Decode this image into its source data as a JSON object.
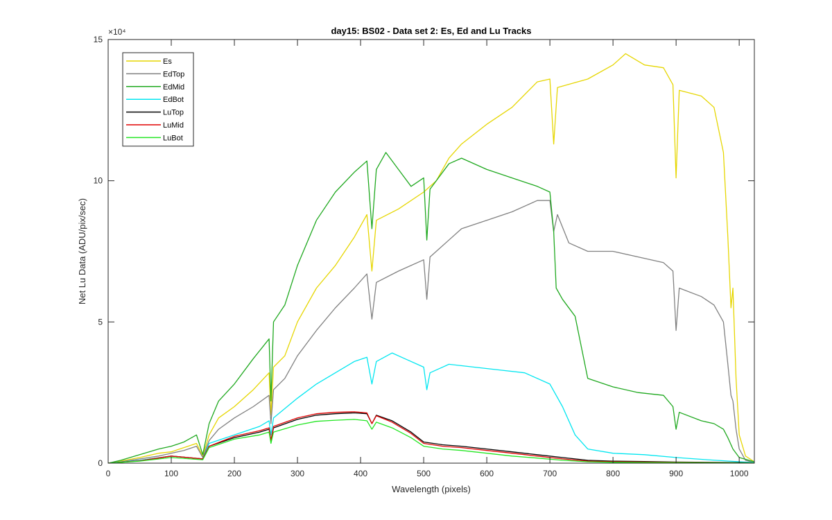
{
  "chart_data": {
    "type": "line",
    "title": "day15: BS02 - Data set 2: Es, Ed and Lu Tracks",
    "xlabel": "Wavelength (pixels)",
    "ylabel": "Net Lu Data (ADU/pix/sec)",
    "xlim": [
      0,
      1024
    ],
    "ylim": [
      0,
      150000
    ],
    "exponent_label": "×10⁴",
    "xticks": [
      0,
      100,
      200,
      300,
      400,
      500,
      600,
      700,
      800,
      900,
      1000
    ],
    "yticks": [
      0,
      50000,
      100000,
      150000
    ],
    "ytick_labels": [
      "0",
      "5",
      "10",
      "15"
    ],
    "legend_position": "top-left",
    "grid": false,
    "series": [
      {
        "name": "Es",
        "color": "#e6d600",
        "points": [
          [
            0,
            0
          ],
          [
            20,
            700
          ],
          [
            50,
            2000
          ],
          [
            80,
            3500
          ],
          [
            100,
            4000
          ],
          [
            120,
            5500
          ],
          [
            140,
            7000
          ],
          [
            150,
            2500
          ],
          [
            160,
            10000
          ],
          [
            175,
            16000
          ],
          [
            200,
            20000
          ],
          [
            230,
            26000
          ],
          [
            255,
            32000
          ],
          [
            258,
            17000
          ],
          [
            262,
            34000
          ],
          [
            280,
            38000
          ],
          [
            300,
            50000
          ],
          [
            330,
            62000
          ],
          [
            360,
            70000
          ],
          [
            390,
            80000
          ],
          [
            410,
            88000
          ],
          [
            418,
            68000
          ],
          [
            425,
            86000
          ],
          [
            460,
            90000
          ],
          [
            500,
            96000
          ],
          [
            520,
            100000
          ],
          [
            540,
            108000
          ],
          [
            560,
            113000
          ],
          [
            600,
            120000
          ],
          [
            640,
            126000
          ],
          [
            680,
            135000
          ],
          [
            700,
            136000
          ],
          [
            706,
            113000
          ],
          [
            712,
            133000
          ],
          [
            760,
            136000
          ],
          [
            800,
            141000
          ],
          [
            820,
            145000
          ],
          [
            850,
            141000
          ],
          [
            880,
            140000
          ],
          [
            895,
            134000
          ],
          [
            900,
            101000
          ],
          [
            905,
            132000
          ],
          [
            940,
            130000
          ],
          [
            960,
            126000
          ],
          [
            975,
            110000
          ],
          [
            982,
            80000
          ],
          [
            987,
            55000
          ],
          [
            990,
            62000
          ],
          [
            995,
            30000
          ],
          [
            1000,
            10000
          ],
          [
            1010,
            2500
          ],
          [
            1024,
            500
          ]
        ]
      },
      {
        "name": "EdTop",
        "color": "#808080",
        "points": [
          [
            0,
            0
          ],
          [
            20,
            500
          ],
          [
            50,
            1500
          ],
          [
            80,
            2500
          ],
          [
            100,
            3500
          ],
          [
            120,
            4500
          ],
          [
            140,
            6000
          ],
          [
            150,
            2000
          ],
          [
            160,
            8000
          ],
          [
            175,
            12000
          ],
          [
            200,
            16000
          ],
          [
            230,
            20000
          ],
          [
            255,
            24000
          ],
          [
            258,
            14000
          ],
          [
            262,
            26000
          ],
          [
            280,
            30000
          ],
          [
            300,
            38000
          ],
          [
            330,
            47000
          ],
          [
            360,
            55000
          ],
          [
            390,
            62000
          ],
          [
            410,
            67000
          ],
          [
            418,
            51000
          ],
          [
            425,
            64000
          ],
          [
            460,
            68000
          ],
          [
            500,
            72000
          ],
          [
            505,
            58000
          ],
          [
            510,
            73000
          ],
          [
            540,
            79000
          ],
          [
            560,
            83000
          ],
          [
            600,
            86000
          ],
          [
            640,
            89000
          ],
          [
            680,
            93000
          ],
          [
            700,
            93000
          ],
          [
            706,
            82000
          ],
          [
            712,
            88000
          ],
          [
            730,
            78000
          ],
          [
            760,
            75000
          ],
          [
            800,
            75000
          ],
          [
            840,
            73000
          ],
          [
            880,
            71000
          ],
          [
            895,
            68000
          ],
          [
            900,
            47000
          ],
          [
            905,
            62000
          ],
          [
            940,
            59000
          ],
          [
            960,
            56000
          ],
          [
            975,
            50000
          ],
          [
            982,
            35000
          ],
          [
            987,
            24000
          ],
          [
            990,
            22000
          ],
          [
            995,
            12000
          ],
          [
            1000,
            5000
          ],
          [
            1010,
            1000
          ],
          [
            1024,
            200
          ]
        ]
      },
      {
        "name": "EdMid",
        "color": "#1ea81e",
        "points": [
          [
            0,
            0
          ],
          [
            20,
            1000
          ],
          [
            50,
            3000
          ],
          [
            80,
            5000
          ],
          [
            100,
            6000
          ],
          [
            120,
            7500
          ],
          [
            140,
            10000
          ],
          [
            150,
            3000
          ],
          [
            160,
            14000
          ],
          [
            175,
            22000
          ],
          [
            200,
            28000
          ],
          [
            230,
            37000
          ],
          [
            255,
            44000
          ],
          [
            258,
            22000
          ],
          [
            262,
            50000
          ],
          [
            280,
            56000
          ],
          [
            300,
            70000
          ],
          [
            330,
            86000
          ],
          [
            360,
            96000
          ],
          [
            390,
            103000
          ],
          [
            410,
            107000
          ],
          [
            418,
            83000
          ],
          [
            425,
            104000
          ],
          [
            440,
            110000
          ],
          [
            460,
            104000
          ],
          [
            480,
            98000
          ],
          [
            500,
            101000
          ],
          [
            505,
            79000
          ],
          [
            510,
            97000
          ],
          [
            540,
            106000
          ],
          [
            560,
            108000
          ],
          [
            600,
            104000
          ],
          [
            640,
            101000
          ],
          [
            680,
            98000
          ],
          [
            700,
            96000
          ],
          [
            706,
            82000
          ],
          [
            710,
            62000
          ],
          [
            720,
            58000
          ],
          [
            740,
            52000
          ],
          [
            760,
            30000
          ],
          [
            800,
            27000
          ],
          [
            840,
            25000
          ],
          [
            880,
            24000
          ],
          [
            895,
            20000
          ],
          [
            900,
            12000
          ],
          [
            905,
            18000
          ],
          [
            940,
            15000
          ],
          [
            960,
            14000
          ],
          [
            975,
            12000
          ],
          [
            982,
            9000
          ],
          [
            990,
            5000
          ],
          [
            1000,
            2000
          ],
          [
            1024,
            500
          ]
        ]
      },
      {
        "name": "EdBot",
        "color": "#00e6f0",
        "points": [
          [
            0,
            0
          ],
          [
            50,
            1000
          ],
          [
            100,
            2500
          ],
          [
            150,
            1500
          ],
          [
            160,
            7000
          ],
          [
            200,
            10000
          ],
          [
            240,
            13000
          ],
          [
            255,
            15000
          ],
          [
            258,
            10000
          ],
          [
            262,
            16000
          ],
          [
            300,
            23000
          ],
          [
            330,
            28000
          ],
          [
            360,
            32000
          ],
          [
            390,
            36000
          ],
          [
            410,
            37500
          ],
          [
            418,
            28000
          ],
          [
            425,
            36000
          ],
          [
            450,
            39000
          ],
          [
            470,
            37000
          ],
          [
            500,
            34000
          ],
          [
            505,
            26000
          ],
          [
            510,
            32000
          ],
          [
            540,
            35000
          ],
          [
            580,
            34000
          ],
          [
            620,
            33000
          ],
          [
            660,
            32000
          ],
          [
            700,
            28000
          ],
          [
            720,
            20000
          ],
          [
            740,
            10000
          ],
          [
            760,
            5000
          ],
          [
            800,
            3500
          ],
          [
            850,
            3000
          ],
          [
            900,
            2000
          ],
          [
            950,
            1200
          ],
          [
            1000,
            500
          ],
          [
            1024,
            200
          ]
        ]
      },
      {
        "name": "LuTop",
        "color": "#000000",
        "points": [
          [
            0,
            0
          ],
          [
            50,
            800
          ],
          [
            100,
            2500
          ],
          [
            150,
            1500
          ],
          [
            160,
            6000
          ],
          [
            200,
            9000
          ],
          [
            240,
            11000
          ],
          [
            255,
            12000
          ],
          [
            258,
            8000
          ],
          [
            262,
            12500
          ],
          [
            300,
            15500
          ],
          [
            330,
            17000
          ],
          [
            360,
            17500
          ],
          [
            390,
            17800
          ],
          [
            410,
            17500
          ],
          [
            418,
            14000
          ],
          [
            425,
            17000
          ],
          [
            450,
            15000
          ],
          [
            480,
            11000
          ],
          [
            500,
            7500
          ],
          [
            530,
            6500
          ],
          [
            560,
            6000
          ],
          [
            600,
            5000
          ],
          [
            640,
            4000
          ],
          [
            680,
            3000
          ],
          [
            720,
            2000
          ],
          [
            760,
            1000
          ],
          [
            800,
            700
          ],
          [
            850,
            600
          ],
          [
            900,
            400
          ],
          [
            950,
            300
          ],
          [
            1000,
            200
          ],
          [
            1024,
            100
          ]
        ]
      },
      {
        "name": "LuMid",
        "color": "#e00000",
        "points": [
          [
            0,
            0
          ],
          [
            50,
            800
          ],
          [
            100,
            2500
          ],
          [
            150,
            1500
          ],
          [
            160,
            6000
          ],
          [
            200,
            9500
          ],
          [
            240,
            11500
          ],
          [
            255,
            12500
          ],
          [
            258,
            8000
          ],
          [
            262,
            13000
          ],
          [
            300,
            16000
          ],
          [
            330,
            17500
          ],
          [
            360,
            18000
          ],
          [
            390,
            18200
          ],
          [
            410,
            17800
          ],
          [
            418,
            14000
          ],
          [
            425,
            16800
          ],
          [
            450,
            14500
          ],
          [
            480,
            10500
          ],
          [
            500,
            7000
          ],
          [
            530,
            6000
          ],
          [
            560,
            5500
          ],
          [
            600,
            4500
          ],
          [
            640,
            3500
          ],
          [
            680,
            2500
          ],
          [
            720,
            1500
          ],
          [
            760,
            700
          ],
          [
            800,
            500
          ],
          [
            850,
            400
          ],
          [
            900,
            300
          ],
          [
            950,
            200
          ],
          [
            1000,
            100
          ],
          [
            1024,
            50
          ]
        ]
      },
      {
        "name": "LuBot",
        "color": "#22e622",
        "points": [
          [
            0,
            0
          ],
          [
            50,
            700
          ],
          [
            100,
            2000
          ],
          [
            150,
            1200
          ],
          [
            160,
            5500
          ],
          [
            200,
            8500
          ],
          [
            240,
            10000
          ],
          [
            255,
            11000
          ],
          [
            258,
            7000
          ],
          [
            262,
            11000
          ],
          [
            300,
            13500
          ],
          [
            330,
            14800
          ],
          [
            360,
            15200
          ],
          [
            390,
            15500
          ],
          [
            410,
            15000
          ],
          [
            418,
            12000
          ],
          [
            425,
            14500
          ],
          [
            450,
            12500
          ],
          [
            480,
            9000
          ],
          [
            500,
            6000
          ],
          [
            530,
            5000
          ],
          [
            560,
            4500
          ],
          [
            600,
            3500
          ],
          [
            640,
            2500
          ],
          [
            680,
            1800
          ],
          [
            720,
            1000
          ],
          [
            760,
            500
          ],
          [
            800,
            300
          ],
          [
            850,
            250
          ],
          [
            900,
            200
          ],
          [
            950,
            150
          ],
          [
            1000,
            80
          ],
          [
            1024,
            50
          ]
        ]
      }
    ]
  }
}
